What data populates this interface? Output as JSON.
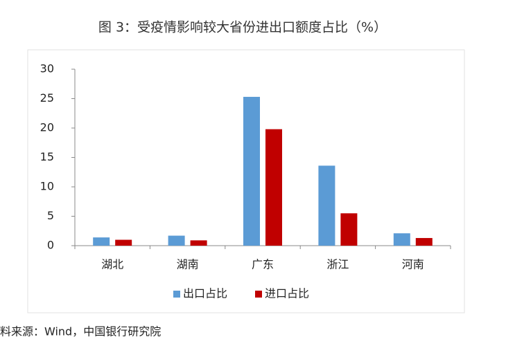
{
  "chart_data": {
    "type": "bar",
    "title": "图 3：受疫情影响较大省份进出口额度占比（%）",
    "categories": [
      "湖北",
      "湖南",
      "广东",
      "浙江",
      "河南"
    ],
    "series": [
      {
        "name": "出口占比",
        "color": "#5b9bd5",
        "values": [
          1.4,
          1.7,
          25.3,
          13.6,
          2.1
        ]
      },
      {
        "name": "进口占比",
        "color": "#c00000",
        "values": [
          1.0,
          0.9,
          19.8,
          5.5,
          1.3
        ]
      }
    ],
    "ylim": [
      0,
      30
    ],
    "yticks": [
      0,
      5,
      10,
      15,
      20,
      25,
      30
    ],
    "grid": false,
    "legend": "bottom",
    "source": "料来源：Wind，中国银行研究院"
  }
}
